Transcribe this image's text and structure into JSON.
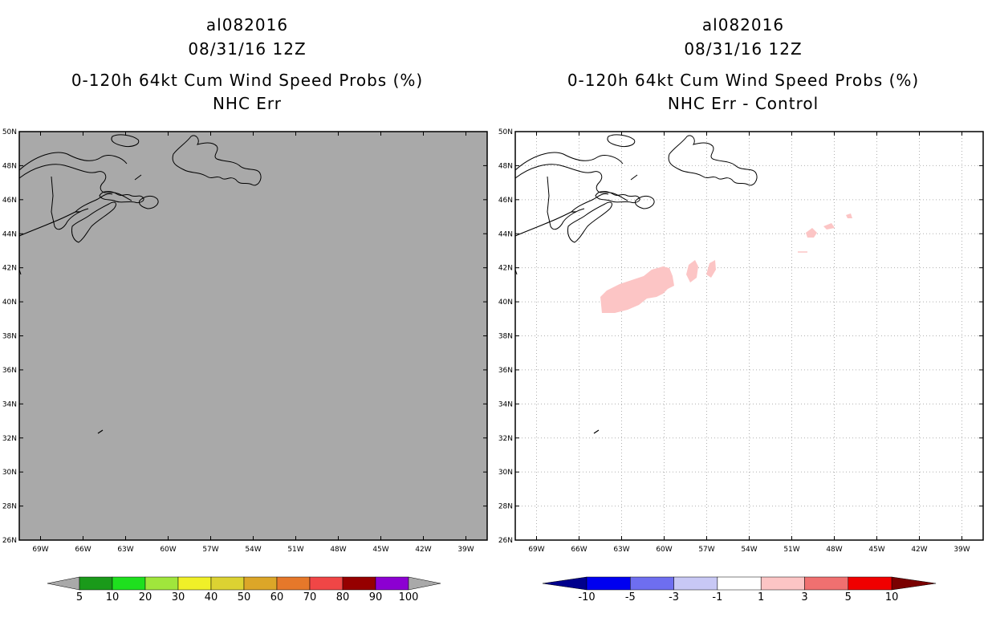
{
  "left_panel": {
    "title_line1": "al082016",
    "title_line2": "08/31/16 12Z",
    "subtitle_line1": "0-120h 64kt Cum Wind Speed Probs (%)",
    "subtitle_line2": "NHC Err",
    "background_color": "#a9a9a9"
  },
  "right_panel": {
    "title_line1": "al082016",
    "title_line2": "08/31/16 12Z",
    "subtitle_line1": "0-120h 64kt Cum Wind Speed Probs (%)",
    "subtitle_line2": "NHC Err - Control",
    "background_color": "#ffffff",
    "shaded_regions_color": "#fcc5c5",
    "shaded_regions_value_range": "1 to 3"
  },
  "map": {
    "lat_labels": [
      "50N",
      "48N",
      "46N",
      "44N",
      "42N",
      "40N",
      "38N",
      "36N",
      "34N",
      "32N",
      "30N",
      "28N",
      "26N"
    ],
    "lon_labels": [
      "69W",
      "66W",
      "63W",
      "60W",
      "57W",
      "54W",
      "51W",
      "48W",
      "45W",
      "42W",
      "39W"
    ],
    "lat_range": [
      26,
      50
    ],
    "lon_range": [
      -70.5,
      -37.5
    ]
  },
  "colorbar_left": {
    "labels": [
      "5",
      "10",
      "20",
      "30",
      "40",
      "50",
      "60",
      "70",
      "80",
      "90",
      "100"
    ],
    "colors": [
      "#a9a9a9",
      "#1a9a1a",
      "#1ee01e",
      "#a0e63c",
      "#f0f028",
      "#dcd232",
      "#dca628",
      "#e6782a",
      "#f04646",
      "#960000",
      "#8c00d2",
      "#a9a9a9"
    ]
  },
  "colorbar_right": {
    "labels": [
      "-10",
      "-5",
      "-3",
      "-1",
      "1",
      "3",
      "5",
      "10"
    ],
    "colors": [
      "#00008c",
      "#0000f0",
      "#6e6ef0",
      "#c8c8f5",
      "#ffffff",
      "#fcc5c5",
      "#f07070",
      "#f00000",
      "#7a0000"
    ]
  }
}
